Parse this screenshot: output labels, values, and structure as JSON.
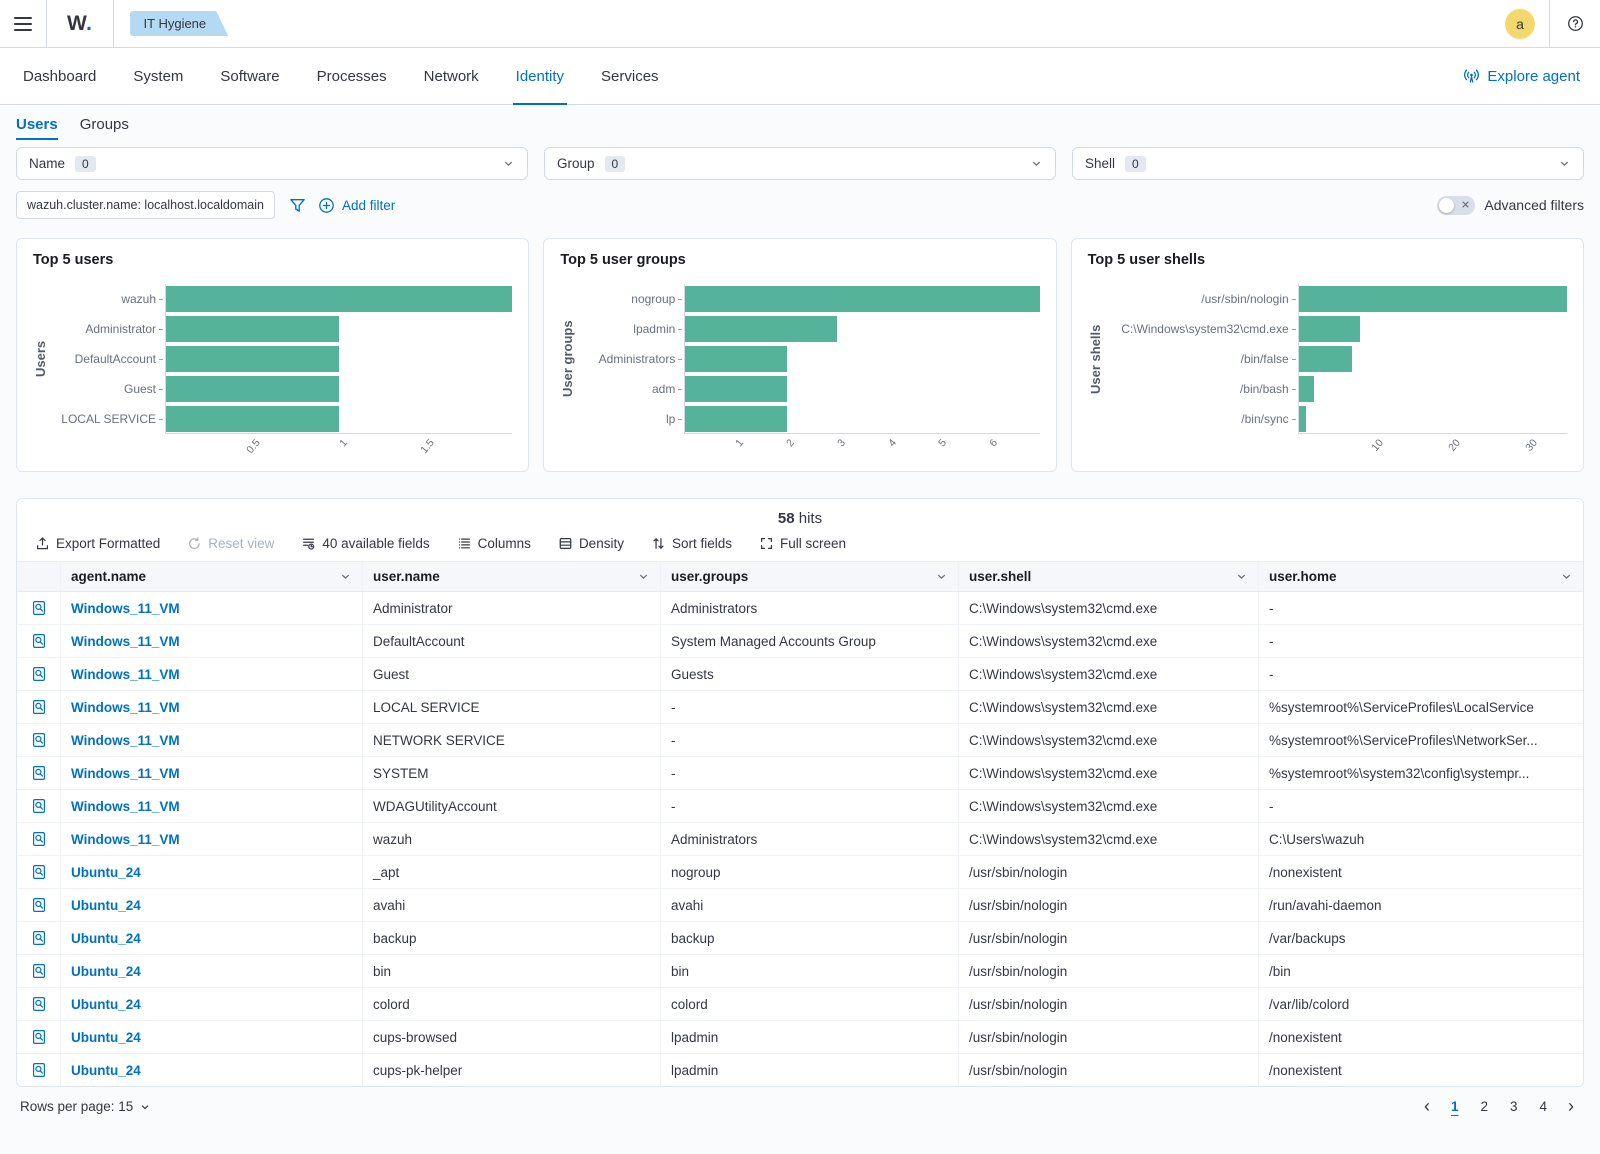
{
  "header": {
    "logo_w": "W",
    "logo_dot": ".",
    "breadcrumb": "IT Hygiene",
    "avatar_initial": "a"
  },
  "nav": {
    "tabs": [
      {
        "label": "Dashboard",
        "active": false
      },
      {
        "label": "System",
        "active": false
      },
      {
        "label": "Software",
        "active": false
      },
      {
        "label": "Processes",
        "active": false
      },
      {
        "label": "Network",
        "active": false
      },
      {
        "label": "Identity",
        "active": true
      },
      {
        "label": "Services",
        "active": false
      }
    ],
    "explore_agent_label": "Explore agent"
  },
  "subtabs": [
    {
      "label": "Users",
      "active": true
    },
    {
      "label": "Groups",
      "active": false
    }
  ],
  "filters": {
    "selects": [
      {
        "label": "Name",
        "count": "0"
      },
      {
        "label": "Group",
        "count": "0"
      },
      {
        "label": "Shell",
        "count": "0"
      }
    ],
    "pill": "wazuh.cluster.name: localhost.localdomain",
    "add_filter_label": "Add filter",
    "advanced_filters_label": "Advanced filters"
  },
  "chart_data": [
    {
      "type": "bar",
      "orientation": "horizontal",
      "title": "Top 5 users",
      "ylabel": "Users",
      "categories": [
        "wazuh",
        "Administrator",
        "DefaultAccount",
        "Guest",
        "LOCAL SERVICE"
      ],
      "values": [
        2,
        1,
        1,
        1,
        1
      ],
      "xlim": [
        0,
        2
      ],
      "xticks": [
        0.5,
        1,
        1.5
      ],
      "xtick_labels": [
        "0.5",
        "1",
        "1.5"
      ],
      "grid": false,
      "legend": "none"
    },
    {
      "type": "bar",
      "orientation": "horizontal",
      "title": "Top 5 user groups",
      "ylabel": "User groups",
      "categories": [
        "nogroup",
        "lpadmin",
        "Administrators",
        "adm",
        "lp"
      ],
      "values": [
        7,
        3,
        2,
        2,
        2
      ],
      "xlim": [
        0,
        7
      ],
      "xticks": [
        1,
        2,
        3,
        4,
        5,
        6
      ],
      "xtick_labels": [
        "1",
        "2",
        "3",
        "4",
        "5",
        "6"
      ],
      "grid": false,
      "legend": "none"
    },
    {
      "type": "bar",
      "orientation": "horizontal",
      "title": "Top 5 user shells",
      "ylabel": "User shells",
      "categories": [
        "/usr/sbin/nologin",
        "C:\\Windows\\system32\\cmd.exe",
        "/bin/false",
        "/bin/bash",
        "/bin/sync"
      ],
      "values": [
        35,
        8,
        7,
        2,
        1
      ],
      "xlim": [
        0,
        35
      ],
      "xticks": [
        10,
        20,
        30
      ],
      "xtick_labels": [
        "10",
        "20",
        "30"
      ],
      "grid": false,
      "legend": "none"
    }
  ],
  "table": {
    "hits_count": "58",
    "hits_label": "hits",
    "toolbar": [
      {
        "label": "Export Formatted",
        "icon": "export-icon",
        "disabled": false
      },
      {
        "label": "Reset view",
        "icon": "reset-icon",
        "disabled": true
      },
      {
        "label": "40 available fields",
        "icon": "available-fields-icon",
        "disabled": false
      },
      {
        "label": "Columns",
        "icon": "columns-icon",
        "disabled": false
      },
      {
        "label": "Density",
        "icon": "density-icon",
        "disabled": false
      },
      {
        "label": "Sort fields",
        "icon": "sort-icon",
        "disabled": false
      },
      {
        "label": "Full screen",
        "icon": "fullscreen-icon",
        "disabled": false
      }
    ],
    "columns": [
      "agent.name",
      "user.name",
      "user.groups",
      "user.shell",
      "user.home"
    ],
    "rows": [
      [
        "Windows_11_VM",
        "Administrator",
        "Administrators",
        "C:\\Windows\\system32\\cmd.exe",
        "-"
      ],
      [
        "Windows_11_VM",
        "DefaultAccount",
        "System Managed Accounts Group",
        "C:\\Windows\\system32\\cmd.exe",
        "-"
      ],
      [
        "Windows_11_VM",
        "Guest",
        "Guests",
        "C:\\Windows\\system32\\cmd.exe",
        "-"
      ],
      [
        "Windows_11_VM",
        "LOCAL SERVICE",
        "-",
        "C:\\Windows\\system32\\cmd.exe",
        "%systemroot%\\ServiceProfiles\\LocalService"
      ],
      [
        "Windows_11_VM",
        "NETWORK SERVICE",
        "-",
        "C:\\Windows\\system32\\cmd.exe",
        "%systemroot%\\ServiceProfiles\\NetworkSer..."
      ],
      [
        "Windows_11_VM",
        "SYSTEM",
        "-",
        "C:\\Windows\\system32\\cmd.exe",
        "%systemroot%\\system32\\config\\systempr..."
      ],
      [
        "Windows_11_VM",
        "WDAGUtilityAccount",
        "-",
        "C:\\Windows\\system32\\cmd.exe",
        "-"
      ],
      [
        "Windows_11_VM",
        "wazuh",
        "Administrators",
        "C:\\Windows\\system32\\cmd.exe",
        "C:\\Users\\wazuh"
      ],
      [
        "Ubuntu_24",
        "_apt",
        "nogroup",
        "/usr/sbin/nologin",
        "/nonexistent"
      ],
      [
        "Ubuntu_24",
        "avahi",
        "avahi",
        "/usr/sbin/nologin",
        "/run/avahi-daemon"
      ],
      [
        "Ubuntu_24",
        "backup",
        "backup",
        "/usr/sbin/nologin",
        "/var/backups"
      ],
      [
        "Ubuntu_24",
        "bin",
        "bin",
        "/usr/sbin/nologin",
        "/bin"
      ],
      [
        "Ubuntu_24",
        "colord",
        "colord",
        "/usr/sbin/nologin",
        "/var/lib/colord"
      ],
      [
        "Ubuntu_24",
        "cups-browsed",
        "lpadmin",
        "/usr/sbin/nologin",
        "/nonexistent"
      ],
      [
        "Ubuntu_24",
        "cups-pk-helper",
        "lpadmin",
        "/usr/sbin/nologin",
        "/nonexistent"
      ]
    ]
  },
  "footer": {
    "rows_per_page_label": "Rows per page: 15",
    "pages": [
      "1",
      "2",
      "3",
      "4"
    ],
    "active_page": "1"
  },
  "colors": {
    "accent_blue": "#0071C3",
    "chart_bar": "#54B399",
    "breadcrumb_badge_bg": "#B4D9F2",
    "avatar_bg": "#F3D86E",
    "panel_border": "#D3DAE6",
    "muted_text": "#69707D"
  }
}
